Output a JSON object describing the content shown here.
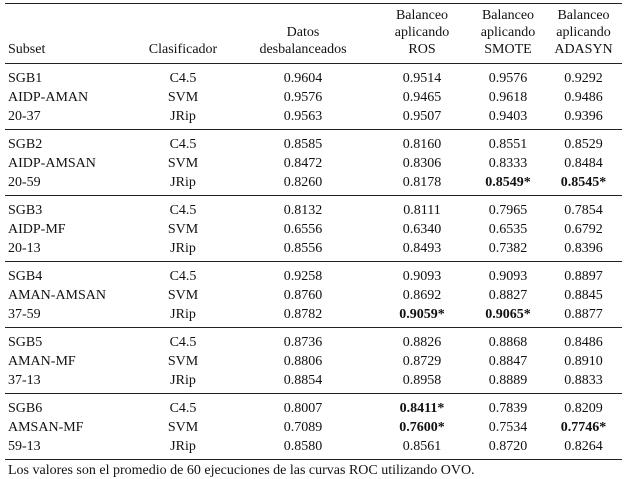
{
  "table": {
    "header": [
      [
        "Subset"
      ],
      [
        "Clasificador"
      ],
      [
        "Datos",
        "desbalanceados"
      ],
      [
        "Balanceo",
        "aplicando",
        "ROS"
      ],
      [
        "Balanceo",
        "aplicando",
        "SMOTE"
      ],
      [
        "Balanceo",
        "aplicando",
        "ADASYN"
      ]
    ],
    "groups": [
      {
        "subset": [
          "SGB1",
          "AIDP-AMAN",
          "20-37"
        ],
        "rows": [
          {
            "classifier": "C4.5",
            "values": [
              "0.9604",
              "0.9514",
              "0.9576",
              "0.9292"
            ]
          },
          {
            "classifier": "SVM",
            "values": [
              "0.9576",
              "0.9465",
              "0.9618",
              "0.9486"
            ]
          },
          {
            "classifier": "JRip",
            "values": [
              "0.9563",
              "0.9507",
              "0.9403",
              "0.9396"
            ]
          }
        ]
      },
      {
        "subset": [
          "SGB2",
          "AIDP-AMSAN",
          "20-59"
        ],
        "rows": [
          {
            "classifier": "C4.5",
            "values": [
              "0.8585",
              "0.8160",
              "0.8551",
              "0.8529"
            ]
          },
          {
            "classifier": "SVM",
            "values": [
              "0.8472",
              "0.8306",
              "0.8333",
              "0.8484"
            ]
          },
          {
            "classifier": "JRip",
            "values": [
              "0.8260",
              "0.8178",
              "0.8549*",
              "0.8545*"
            ]
          }
        ]
      },
      {
        "subset": [
          "SGB3",
          "AIDP-MF",
          "20-13"
        ],
        "rows": [
          {
            "classifier": "C4.5",
            "values": [
              "0.8132",
              "0.8111",
              "0.7965",
              "0.7854"
            ]
          },
          {
            "classifier": "SVM",
            "values": [
              "0.6556",
              "0.6340",
              "0.6535",
              "0.6792"
            ]
          },
          {
            "classifier": "JRip",
            "values": [
              "0.8556",
              "0.8493",
              "0.7382",
              "0.8396"
            ]
          }
        ]
      },
      {
        "subset": [
          "SGB4",
          "AMAN-AMSAN",
          "37-59"
        ],
        "rows": [
          {
            "classifier": "C4.5",
            "values": [
              "0.9258",
              "0.9093",
              "0.9093",
              "0.8897"
            ]
          },
          {
            "classifier": "SVM",
            "values": [
              "0.8760",
              "0.8692",
              "0.8827",
              "0.8845"
            ]
          },
          {
            "classifier": "JRip",
            "values": [
              "0.8782",
              "0.9059*",
              "0.9065*",
              "0.8877"
            ]
          }
        ]
      },
      {
        "subset": [
          "SGB5",
          "AMAN-MF",
          "37-13"
        ],
        "rows": [
          {
            "classifier": "C4.5",
            "values": [
              "0.8736",
              "0.8826",
              "0.8868",
              "0.8486"
            ]
          },
          {
            "classifier": "SVM",
            "values": [
              "0.8806",
              "0.8729",
              "0.8847",
              "0.8910"
            ]
          },
          {
            "classifier": "JRip",
            "values": [
              "0.8854",
              "0.8958",
              "0.8889",
              "0.8833"
            ]
          }
        ]
      },
      {
        "subset": [
          "SGB6",
          "AMSAN-MF",
          "59-13"
        ],
        "rows": [
          {
            "classifier": "C4.5",
            "values": [
              "0.8007",
              "0.8411*",
              "0.7839",
              "0.8209"
            ]
          },
          {
            "classifier": "SVM",
            "values": [
              "0.7089",
              "0.7600*",
              "0.7534",
              "0.7746*"
            ]
          },
          {
            "classifier": "JRip",
            "values": [
              "0.8580",
              "0.8561",
              "0.8720",
              "0.8264"
            ]
          }
        ]
      }
    ]
  },
  "footnote": "Los valores son el promedio de 60 ejecuciones de las curvas ROC utilizando OVO."
}
